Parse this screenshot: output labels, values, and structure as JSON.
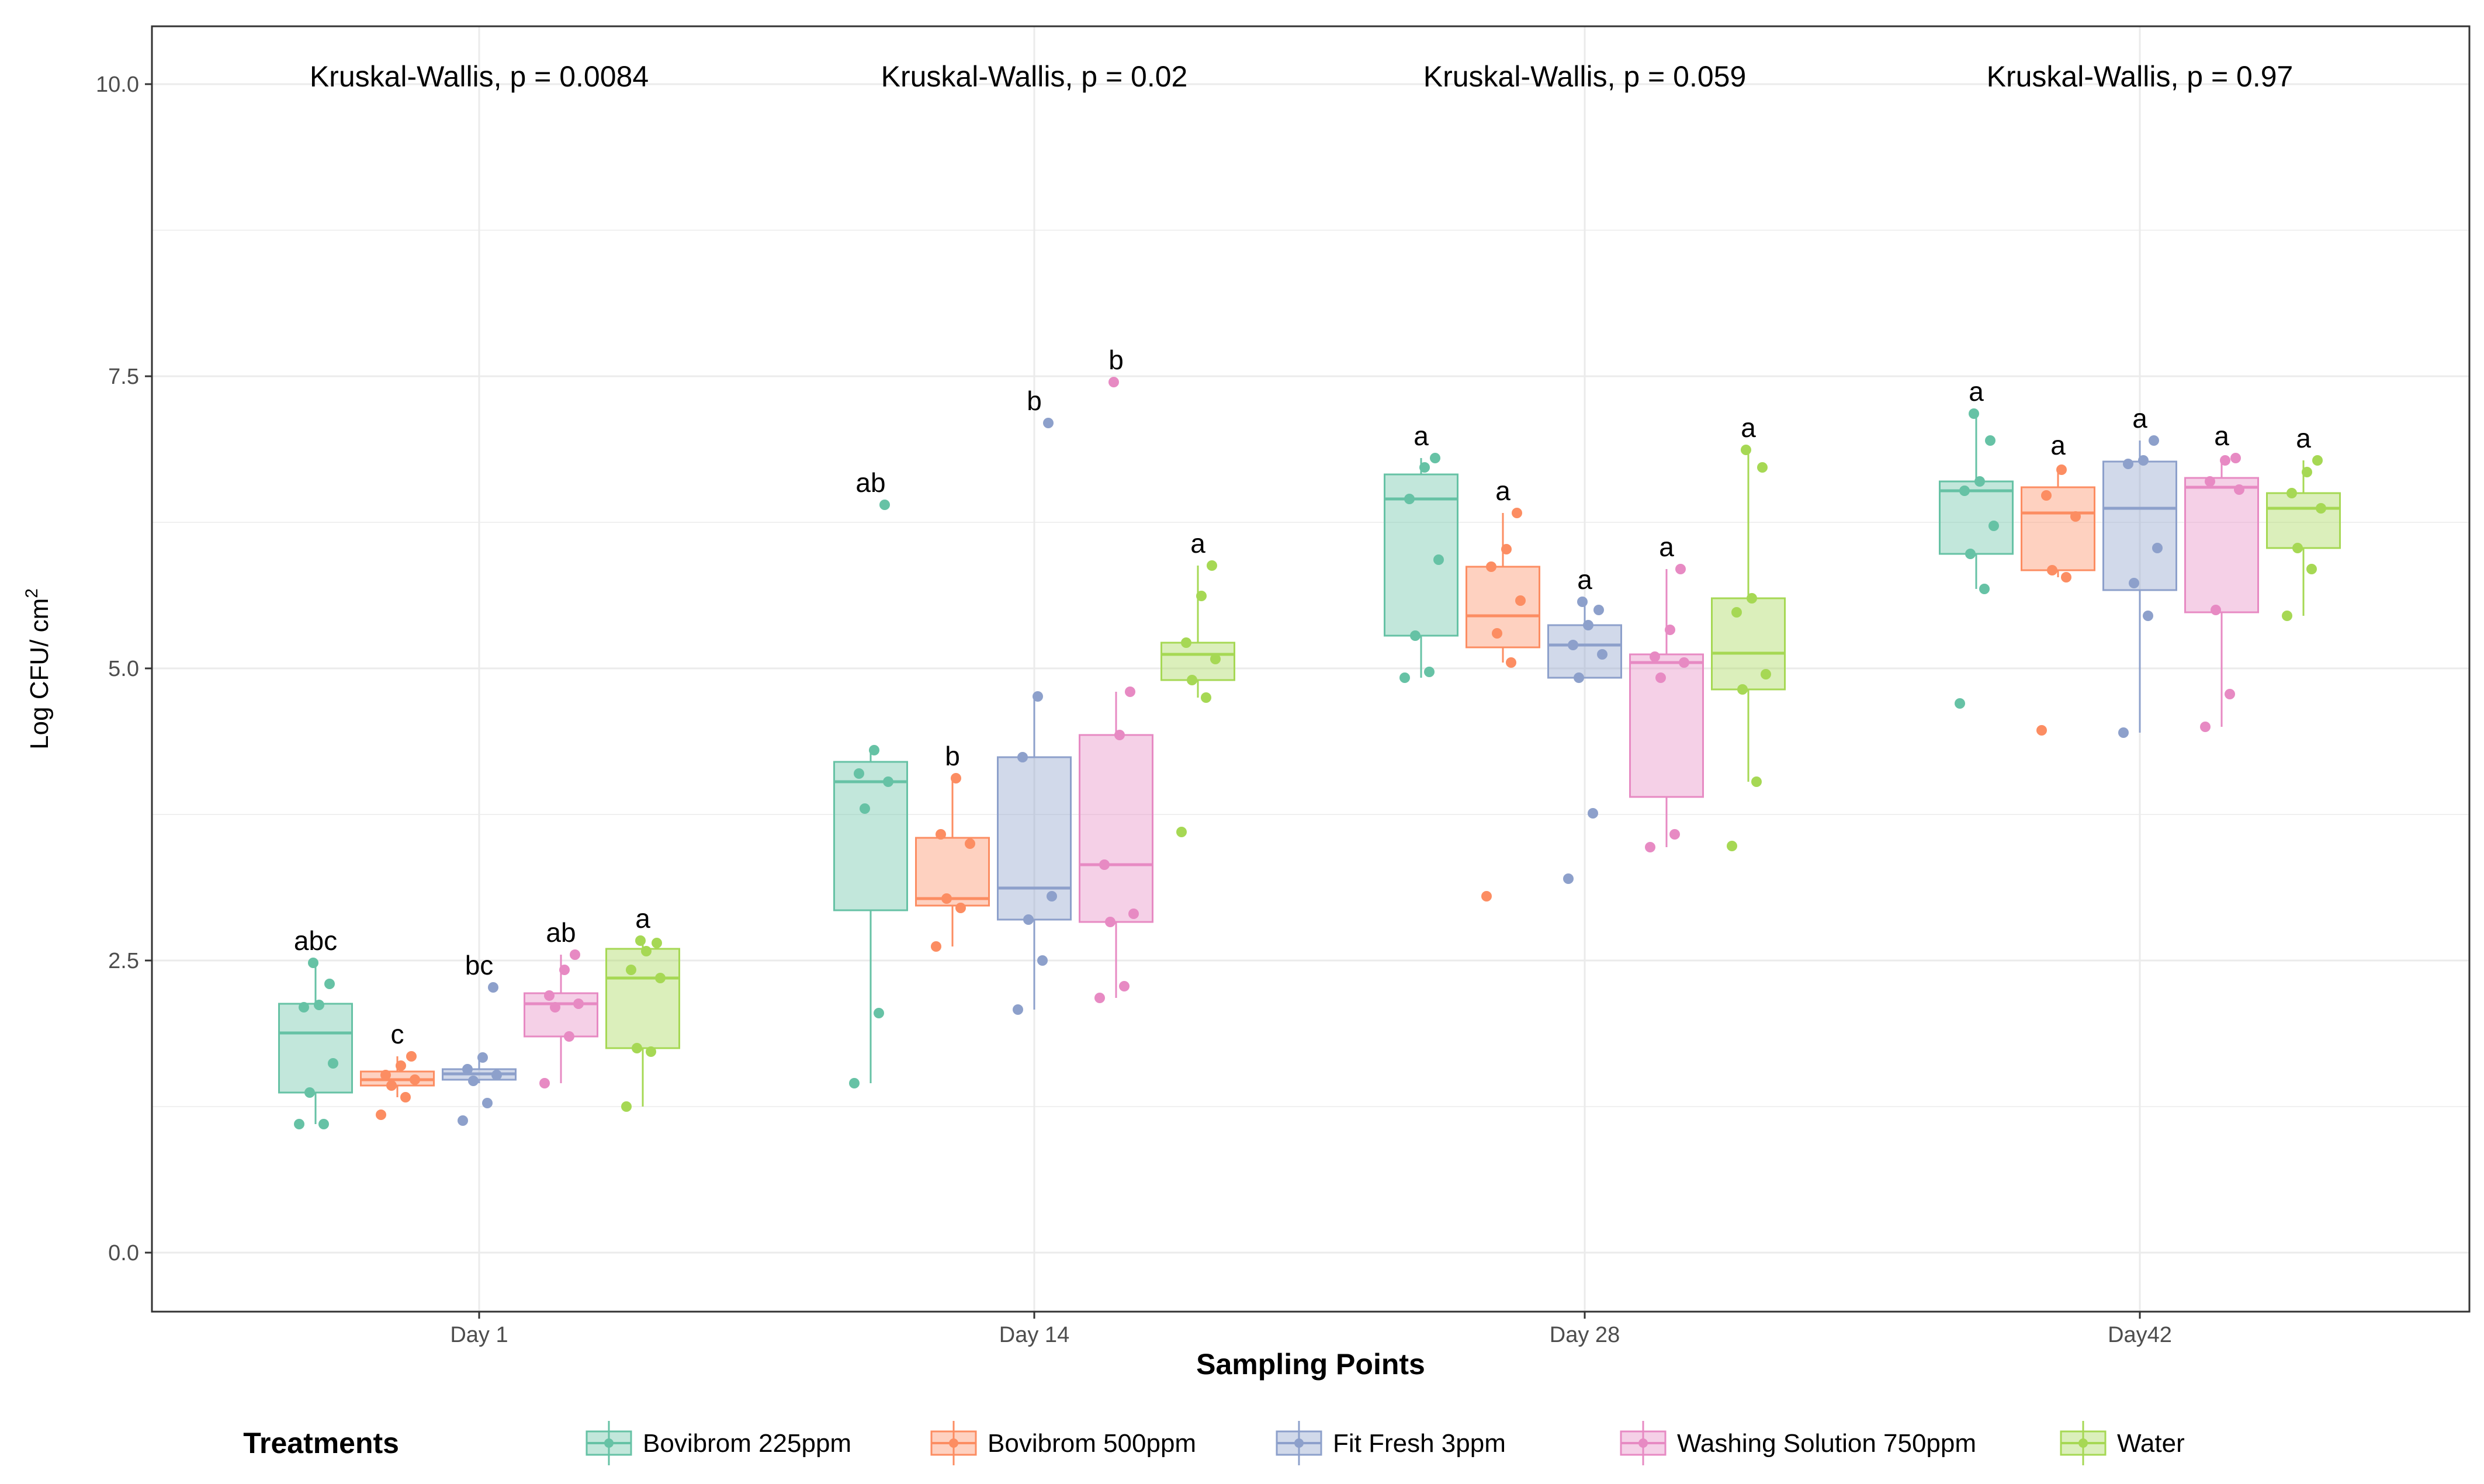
{
  "chart_data": {
    "type": "boxplot",
    "title": "",
    "xlabel": "Sampling Points",
    "ylabel_main": "Log CFU/ cm",
    "ylabel_sup": "2",
    "ylim": [
      -0.5,
      10.5
    ],
    "yticks": [
      0.0,
      2.5,
      5.0,
      7.5,
      10.0
    ],
    "ytick_labels": [
      "0.0",
      "2.5",
      "5.0",
      "7.5",
      "10.0"
    ],
    "categories": [
      "Day 1",
      "Day 14",
      "Day 28",
      "Day42"
    ],
    "kruskal_wallis": [
      "Kruskal-Wallis, p = 0.0084",
      "Kruskal-Wallis, p = 0.02",
      "Kruskal-Wallis, p = 0.059",
      "Kruskal-Wallis, p = 0.97"
    ],
    "legend_title": "Treatments",
    "series": [
      {
        "name": "Bovibrom 225ppm",
        "color": "#66c2a5",
        "groups": [
          {
            "q1": 1.37,
            "median": 1.88,
            "q3": 2.13,
            "whisker_low": 1.1,
            "whisker_high": 2.48,
            "letter": "abc",
            "points": [
              1.1,
              1.1,
              1.37,
              1.62,
              2.1,
              2.12,
              2.3,
              2.48
            ]
          },
          {
            "q1": 2.93,
            "median": 4.03,
            "q3": 4.2,
            "whisker_low": 1.45,
            "whisker_high": 4.3,
            "letter": "ab",
            "points": [
              1.45,
              2.05,
              3.8,
              4.03,
              4.1,
              4.3,
              6.4
            ]
          },
          {
            "q1": 5.28,
            "median": 6.45,
            "q3": 6.66,
            "whisker_low": 4.92,
            "whisker_high": 6.8,
            "letter": "a",
            "points": [
              4.92,
              4.97,
              5.28,
              5.93,
              6.45,
              6.72,
              6.8
            ]
          },
          {
            "q1": 5.98,
            "median": 6.52,
            "q3": 6.6,
            "whisker_low": 5.68,
            "whisker_high": 7.18,
            "letter": "a",
            "points": [
              4.7,
              5.68,
              5.98,
              6.22,
              6.52,
              6.6,
              6.95,
              7.18
            ]
          }
        ]
      },
      {
        "name": "Bovibrom 500ppm",
        "color": "#fc8d62",
        "groups": [
          {
            "q1": 1.43,
            "median": 1.48,
            "q3": 1.55,
            "whisker_low": 1.33,
            "whisker_high": 1.68,
            "letter": "c",
            "points": [
              1.18,
              1.33,
              1.43,
              1.48,
              1.52,
              1.6,
              1.68
            ]
          },
          {
            "q1": 2.97,
            "median": 3.03,
            "q3": 3.55,
            "whisker_low": 2.62,
            "whisker_high": 4.06,
            "letter": "b",
            "points": [
              2.62,
              2.95,
              3.03,
              3.5,
              3.58,
              4.06
            ]
          },
          {
            "q1": 5.18,
            "median": 5.45,
            "q3": 5.87,
            "whisker_low": 5.05,
            "whisker_high": 6.33,
            "letter": "a",
            "points": [
              3.05,
              5.05,
              5.3,
              5.58,
              5.87,
              6.02,
              6.33
            ]
          },
          {
            "q1": 5.84,
            "median": 6.33,
            "q3": 6.55,
            "whisker_low": 5.78,
            "whisker_high": 6.72,
            "letter": "a",
            "points": [
              4.47,
              5.78,
              5.84,
              6.3,
              6.48,
              6.7
            ]
          }
        ]
      },
      {
        "name": "Fit Fresh 3ppm",
        "color": "#8da0cb",
        "groups": [
          {
            "q1": 1.48,
            "median": 1.53,
            "q3": 1.57,
            "whisker_low": 1.45,
            "whisker_high": 1.67,
            "letter": "bc",
            "points": [
              1.13,
              1.28,
              1.47,
              1.52,
              1.57,
              1.67,
              2.27
            ]
          },
          {
            "q1": 2.85,
            "median": 3.12,
            "q3": 4.24,
            "whisker_low": 2.08,
            "whisker_high": 4.76,
            "letter": "b",
            "points": [
              2.08,
              2.5,
              2.85,
              3.05,
              4.24,
              4.76,
              7.1
            ]
          },
          {
            "q1": 4.92,
            "median": 5.2,
            "q3": 5.37,
            "whisker_low": 4.92,
            "whisker_high": 5.57,
            "letter": "a",
            "points": [
              3.2,
              3.76,
              4.92,
              5.12,
              5.2,
              5.37,
              5.5,
              5.57
            ]
          },
          {
            "q1": 5.67,
            "median": 6.37,
            "q3": 6.77,
            "whisker_low": 4.45,
            "whisker_high": 6.95,
            "letter": "a",
            "points": [
              4.45,
              5.45,
              5.73,
              6.03,
              6.75,
              6.78,
              6.95
            ]
          }
        ]
      },
      {
        "name": "Washing Solution 750ppm",
        "color": "#e78ac3",
        "groups": [
          {
            "q1": 1.85,
            "median": 2.13,
            "q3": 2.22,
            "whisker_low": 1.45,
            "whisker_high": 2.55,
            "letter": "ab",
            "points": [
              1.45,
              1.85,
              2.1,
              2.13,
              2.2,
              2.42,
              2.55
            ]
          },
          {
            "q1": 2.83,
            "median": 3.32,
            "q3": 4.43,
            "whisker_low": 2.18,
            "whisker_high": 4.8,
            "letter": "b",
            "points": [
              2.18,
              2.28,
              2.83,
              2.9,
              3.32,
              4.43,
              4.8,
              7.45
            ]
          },
          {
            "q1": 3.9,
            "median": 5.05,
            "q3": 5.12,
            "whisker_low": 3.47,
            "whisker_high": 5.85,
            "letter": "a",
            "points": [
              3.47,
              3.58,
              4.92,
              5.05,
              5.1,
              5.33,
              5.85
            ]
          },
          {
            "q1": 5.48,
            "median": 6.55,
            "q3": 6.63,
            "whisker_low": 4.5,
            "whisker_high": 6.8,
            "letter": "a",
            "points": [
              4.5,
              4.78,
              5.5,
              6.53,
              6.6,
              6.78,
              6.8
            ]
          }
        ]
      },
      {
        "name": "Water",
        "color": "#a6d854",
        "groups": [
          {
            "q1": 1.75,
            "median": 2.35,
            "q3": 2.6,
            "whisker_low": 1.25,
            "whisker_high": 2.67,
            "letter": "a",
            "points": [
              1.25,
              1.72,
              1.75,
              2.35,
              2.42,
              2.58,
              2.65,
              2.67
            ]
          },
          {
            "q1": 4.9,
            "median": 5.12,
            "q3": 5.22,
            "whisker_low": 4.75,
            "whisker_high": 5.88,
            "letter": "a",
            "points": [
              3.6,
              4.75,
              4.9,
              5.08,
              5.22,
              5.62,
              5.88
            ]
          },
          {
            "q1": 4.82,
            "median": 5.13,
            "q3": 5.6,
            "whisker_low": 4.03,
            "whisker_high": 6.87,
            "letter": "a",
            "points": [
              3.48,
              4.03,
              4.82,
              4.95,
              5.48,
              5.6,
              6.72,
              6.87
            ]
          },
          {
            "q1": 6.03,
            "median": 6.37,
            "q3": 6.5,
            "whisker_low": 5.45,
            "whisker_high": 6.78,
            "letter": "a",
            "points": [
              5.45,
              5.85,
              6.03,
              6.37,
              6.5,
              6.68,
              6.78
            ]
          }
        ]
      }
    ]
  }
}
